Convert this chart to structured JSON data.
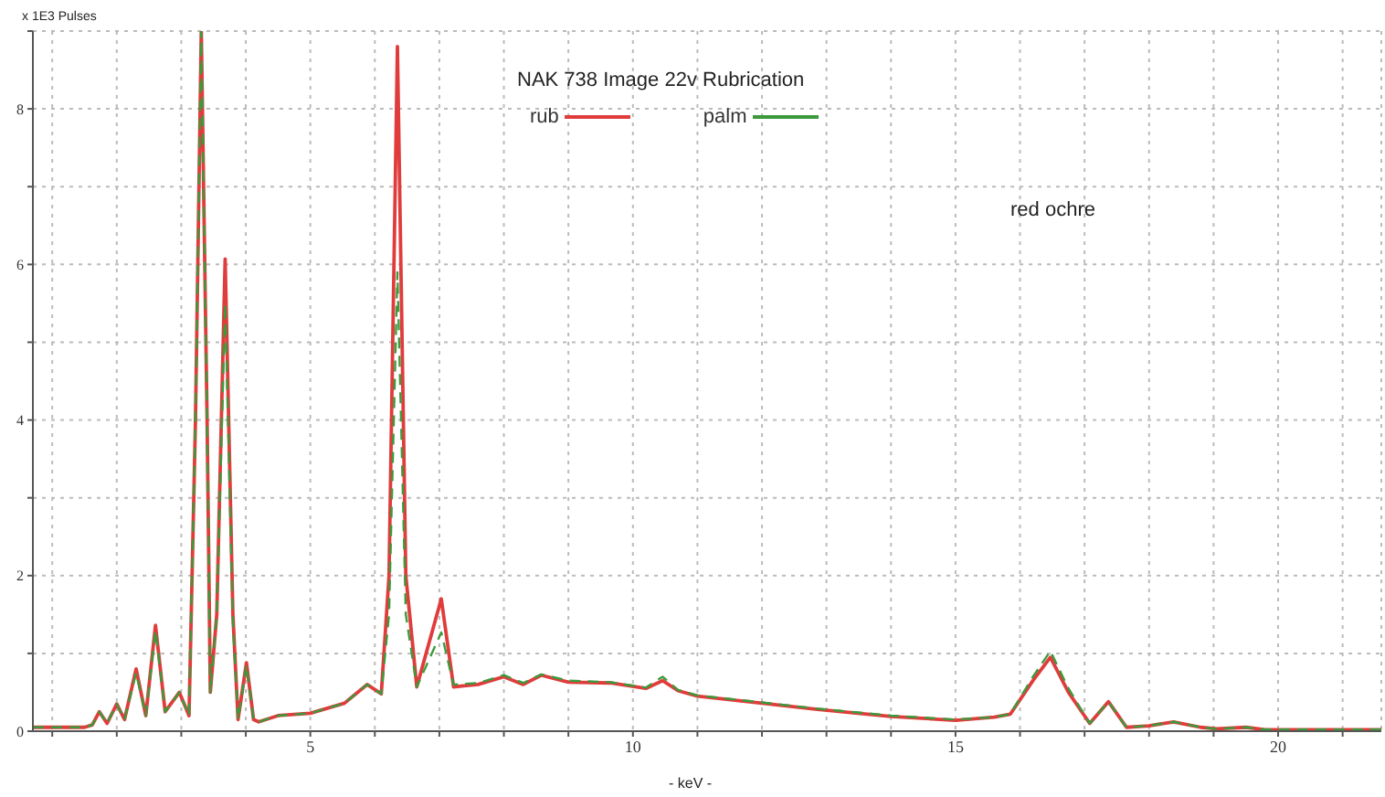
{
  "chart_data": {
    "type": "line",
    "title": "NAK 738 Image 22v  Rubrication",
    "xlabel": "- keV -",
    "ylabel": "x 1E3 Pulses",
    "annotations": [
      "red ochre"
    ],
    "x": [
      0.7,
      1.5,
      1.62,
      1.73,
      1.85,
      2.0,
      2.12,
      2.3,
      2.45,
      2.6,
      2.75,
      2.97,
      3.12,
      3.22,
      3.31,
      3.4,
      3.45,
      3.55,
      3.68,
      3.8,
      3.88,
      4.01,
      4.12,
      4.2,
      4.5,
      5.0,
      5.53,
      5.88,
      6.1,
      6.22,
      6.35,
      6.48,
      6.65,
      7.03,
      7.22,
      7.6,
      8.0,
      8.3,
      8.58,
      9.0,
      9.65,
      10.2,
      10.46,
      10.7,
      11.0,
      12.0,
      12.86,
      14.0,
      15.0,
      15.6,
      15.85,
      16.2,
      16.47,
      16.75,
      17.08,
      17.37,
      17.65,
      18.0,
      18.38,
      18.8,
      19.05,
      19.5,
      19.8,
      21.6
    ],
    "series": [
      {
        "name": "palm",
        "color": "#3c9a3c",
        "line_style": "dashed",
        "values": [
          0.05,
          0.05,
          0.08,
          0.25,
          0.1,
          0.35,
          0.15,
          0.75,
          0.2,
          1.3,
          0.25,
          0.5,
          0.2,
          4,
          9,
          4,
          0.5,
          1.5,
          5.5,
          1.4,
          0.15,
          0.85,
          0.15,
          0.12,
          0.2,
          0.23,
          0.36,
          0.6,
          0.48,
          1.5,
          5.9,
          1.5,
          0.57,
          1.27,
          0.6,
          0.62,
          0.72,
          0.62,
          0.73,
          0.65,
          0.63,
          0.56,
          0.7,
          0.53,
          0.46,
          0.37,
          0.29,
          0.2,
          0.15,
          0.18,
          0.22,
          0.7,
          1.03,
          0.55,
          0.1,
          0.38,
          0.05,
          0.07,
          0.12,
          0.05,
          0.03,
          0.05,
          0.02,
          0.02
        ]
      },
      {
        "name": "rub",
        "color": "#e03c3c",
        "values": [
          0.05,
          0.05,
          0.08,
          0.25,
          0.1,
          0.35,
          0.15,
          0.8,
          0.2,
          1.36,
          0.25,
          0.5,
          0.2,
          4,
          9,
          4,
          0.5,
          1.5,
          6.07,
          1.5,
          0.15,
          0.88,
          0.15,
          0.12,
          0.2,
          0.23,
          0.36,
          0.6,
          0.48,
          2,
          8.8,
          2,
          0.57,
          1.7,
          0.57,
          0.6,
          0.7,
          0.6,
          0.72,
          0.63,
          0.62,
          0.55,
          0.65,
          0.52,
          0.45,
          0.36,
          0.28,
          0.19,
          0.14,
          0.18,
          0.22,
          0.65,
          0.95,
          0.5,
          0.1,
          0.38,
          0.05,
          0.07,
          0.12,
          0.05,
          0.03,
          0.05,
          0.02,
          0.02
        ]
      }
    ],
    "xlim": [
      0.7,
      21.6
    ],
    "xticks": [
      {
        "value": 1,
        "label": null
      },
      {
        "value": 2,
        "label": null
      },
      {
        "value": 3,
        "label": null
      },
      {
        "value": 4,
        "label": null
      },
      5,
      {
        "value": 6,
        "label": null
      },
      {
        "value": 7,
        "label": null
      },
      {
        "value": 8,
        "label": null
      },
      {
        "value": 9,
        "label": null
      },
      10,
      {
        "value": 11,
        "label": null
      },
      {
        "value": 12,
        "label": null
      },
      {
        "value": 13,
        "label": null
      },
      {
        "value": 14,
        "label": null
      },
      15,
      {
        "value": 16,
        "label": null
      },
      {
        "value": 17,
        "label": null
      },
      {
        "value": 18,
        "label": null
      },
      {
        "value": 19,
        "label": null
      },
      20,
      {
        "value": 21,
        "label": null
      }
    ],
    "ylim": [
      0,
      9
    ],
    "yticks": [
      0,
      {
        "value": 1,
        "label": null
      },
      2,
      {
        "value": 3,
        "label": null
      },
      4,
      {
        "value": 5,
        "label": null
      },
      6,
      {
        "value": 7,
        "label": null
      },
      8,
      {
        "value": 9,
        "label": null
      }
    ],
    "grid": true,
    "legend": "top",
    "marker": "none",
    "line_style": "solid"
  }
}
